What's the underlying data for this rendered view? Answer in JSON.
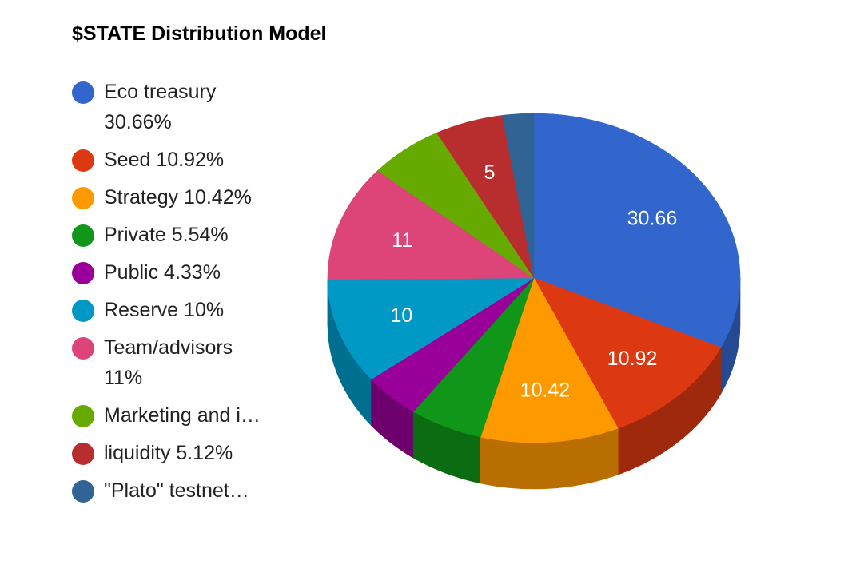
{
  "chart_data": {
    "type": "pie",
    "title": "$STATE Distribution Model",
    "three_d": true,
    "legend_position": "left",
    "slices": [
      {
        "name": "Eco treasury",
        "value": 30.66,
        "legend_text": "Eco treasury\n30.66%",
        "data_label": "30.66",
        "color": "#3366cc"
      },
      {
        "name": "Seed",
        "value": 10.92,
        "legend_text": "Seed 10.92%",
        "data_label": "10.92",
        "color": "#dc3912"
      },
      {
        "name": "Strategy",
        "value": 10.42,
        "legend_text": "Strategy 10.42%",
        "data_label": "10.42",
        "color": "#ff9900"
      },
      {
        "name": "Private",
        "value": 5.54,
        "legend_text": "Private 5.54%",
        "data_label": "",
        "color": "#109618"
      },
      {
        "name": "Public",
        "value": 4.33,
        "legend_text": "Public 4.33%",
        "data_label": "",
        "color": "#990099"
      },
      {
        "name": "Reserve",
        "value": 10,
        "legend_text": "Reserve 10%",
        "data_label": "10",
        "color": "#0099c6"
      },
      {
        "name": "Team/advisors",
        "value": 11,
        "legend_text": "Team/advisors\n11%",
        "data_label": "11",
        "color": "#dd4477"
      },
      {
        "name": "Marketing and i…",
        "value": 5.65,
        "legend_text": "Marketing and i…",
        "data_label": "",
        "color": "#66aa00"
      },
      {
        "name": "liquidity",
        "value": 5.12,
        "legend_text": "liquidity 5.12%",
        "data_label": "5",
        "color": "#b82e2e"
      },
      {
        "name": "\"Plato\" testnet…",
        "value": 2.36,
        "legend_text": "\"Plato\" testnet…",
        "data_label": "",
        "color": "#316395"
      }
    ]
  }
}
